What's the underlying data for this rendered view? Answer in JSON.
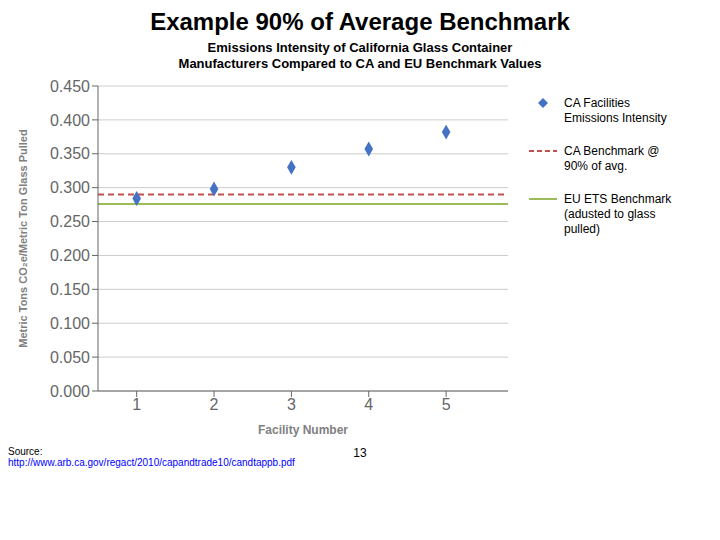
{
  "chart_data": {
    "type": "scatter",
    "title": "Example 90% of Average Benchmark",
    "subtitle": "Emissions Intensity of California Glass Container\nManufacturers Compared to CA and EU Benchmark Values",
    "x_label": "Facility Number",
    "y_label": "Metric Tons CO₂e/Metric Ton Glass Pulled",
    "xlim": [
      0.5,
      5.8
    ],
    "xticks": [
      1,
      2,
      3,
      4,
      5
    ],
    "ylim": [
      0.0,
      0.45
    ],
    "yticks": [
      {
        "value": 0.0,
        "label": "0.000"
      },
      {
        "value": 0.05,
        "label": "0.050"
      },
      {
        "value": 0.1,
        "label": "0.100"
      },
      {
        "value": 0.15,
        "label": "0.150"
      },
      {
        "value": 0.2,
        "label": "0.200"
      },
      {
        "value": 0.25,
        "label": "0.250"
      },
      {
        "value": 0.3,
        "label": "0.300"
      },
      {
        "value": 0.35,
        "label": "0.350"
      },
      {
        "value": 0.4,
        "label": "0.400"
      },
      {
        "value": 0.45,
        "label": "0.450"
      }
    ],
    "grid": "y",
    "legend": "right",
    "series": [
      {
        "name": "CA Facilities\nEmissions Intensity",
        "type": "scatter",
        "marker": "diamond",
        "color": "#4472C4",
        "x": [
          1,
          2,
          3,
          4,
          5
        ],
        "values": [
          0.284,
          0.298,
          0.33,
          0.357,
          0.382
        ]
      },
      {
        "name": "CA Benchmark @\n90% of avg.",
        "type": "hline",
        "line_style": "dashed",
        "color": "#C0504D",
        "values": [
          0.29
        ]
      },
      {
        "name": "EU ETS Benchmark\n(adusted to glass\npulled)",
        "type": "hline",
        "line_style": "solid",
        "color": "#9BBB59",
        "values": [
          0.276
        ]
      }
    ],
    "annotations": [
      "Source:",
      "http://www.arb.ca.gov/regact/2010/capandtrade10/candtappb.pdf",
      "13"
    ]
  }
}
